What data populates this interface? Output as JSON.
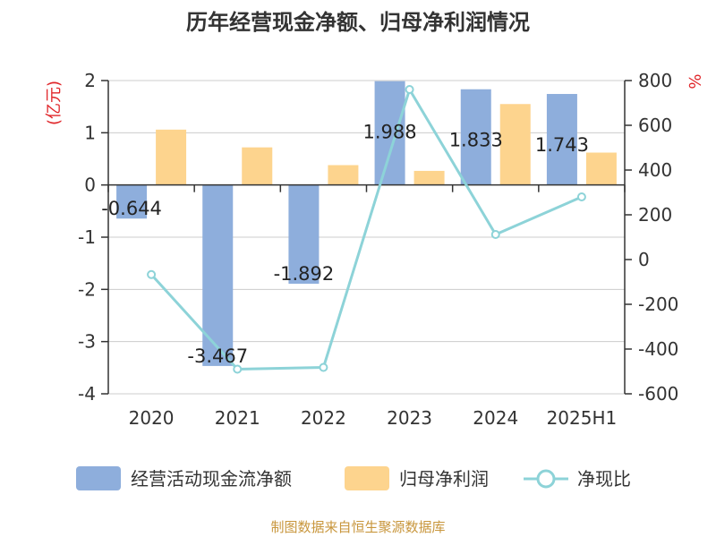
{
  "chart_data": {
    "type": "bar",
    "title": "历年经营现金净额、归母净利润情况",
    "categories": [
      "2020",
      "2021",
      "2022",
      "2023",
      "2024",
      "2025H1"
    ],
    "left_axis": {
      "unit": "(亿元)",
      "ylim": [
        -4,
        2
      ],
      "ticks": [
        2,
        1,
        0,
        -1,
        -2,
        -3,
        -4
      ]
    },
    "right_axis": {
      "unit": "%",
      "ylim": [
        -600,
        800
      ],
      "ticks": [
        800,
        600,
        400,
        200,
        0,
        -200,
        -400,
        -600
      ]
    },
    "series": [
      {
        "name": "经营活动现金流净额",
        "type": "bar",
        "axis": "left",
        "color": "#8eaedc",
        "values": [
          -0.644,
          -3.467,
          -1.892,
          1.988,
          1.833,
          1.743
        ],
        "labels": [
          "-0.644",
          "-3.467",
          "-1.892",
          "1.988",
          "1.833",
          "1.743"
        ]
      },
      {
        "name": "归母净利润",
        "type": "bar",
        "axis": "left",
        "color": "#fdd48e",
        "values": [
          1.06,
          0.72,
          0.38,
          0.27,
          1.55,
          0.62
        ]
      },
      {
        "name": "净现比",
        "type": "line",
        "axis": "right",
        "color": "#8dd3d8",
        "values": [
          -67,
          -490,
          -482,
          760,
          112,
          280
        ]
      }
    ],
    "grid": true,
    "legend_position": "bottom"
  },
  "source": "制图数据来自恒生聚源数据库"
}
